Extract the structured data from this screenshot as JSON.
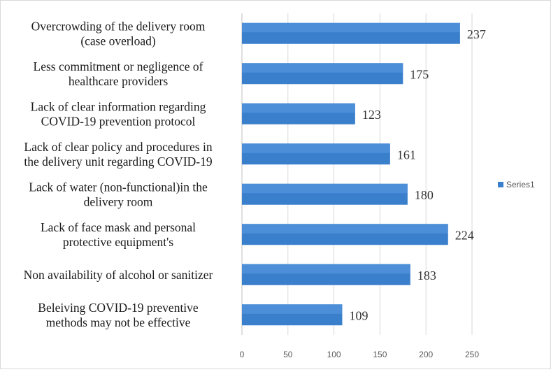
{
  "chart_data": {
    "type": "bar",
    "orientation": "horizontal",
    "title": "",
    "xlabel": "",
    "ylabel": "",
    "categories": [
      [
        "Overcrowding of the delivery room",
        "(case overload)"
      ],
      [
        "Less commitment or negligence of",
        "healthcare providers"
      ],
      [
        "Lack of clear information regarding",
        "COVID-19 prevention protocol"
      ],
      [
        "Lack of clear policy and procedures in",
        "the delivery unit regarding COVID-19"
      ],
      [
        "Lack of water (non-functional)in the",
        "delivery room"
      ],
      [
        "Lack of face mask and personal",
        "protective equipment's"
      ],
      [
        "Non availability of alcohol or sanitizer"
      ],
      [
        "Beleiving COVID-19 preventive",
        "methods may not be effective"
      ]
    ],
    "series": [
      {
        "name": "Series1",
        "values": [
          237,
          175,
          123,
          161,
          180,
          224,
          183,
          109
        ]
      }
    ],
    "xlim": [
      0,
      250
    ],
    "xticks": [
      0,
      50,
      100,
      150,
      200,
      250
    ],
    "grid": true,
    "legend_position": "right",
    "colors": {
      "bar": "#3a7fcc",
      "grid": "#d9d9d9",
      "axis": "#bfbfbf"
    }
  }
}
